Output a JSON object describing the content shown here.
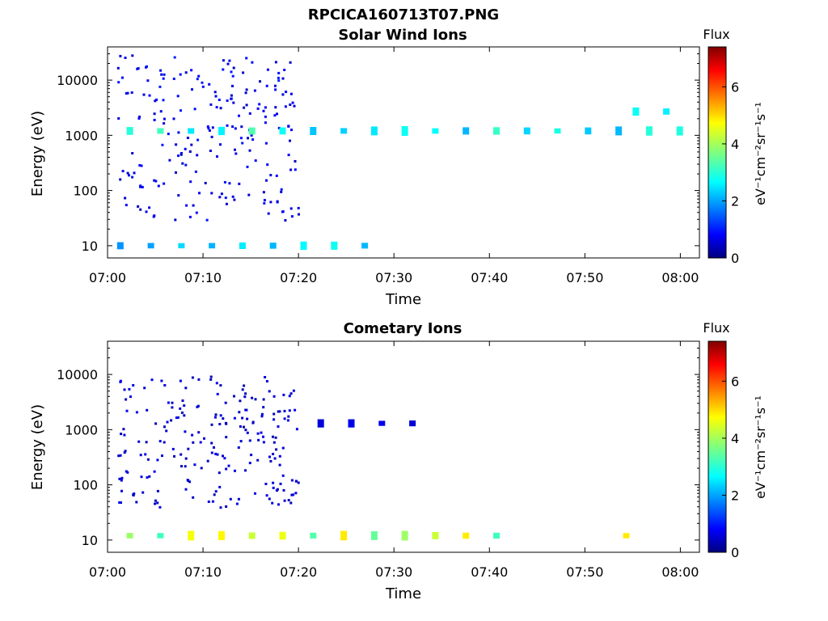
{
  "figure_title": "RPCICA160713T07.PNG",
  "colormap": {
    "name": "jet",
    "stops": [
      "#00007f",
      "#0000ff",
      "#007fff",
      "#00ffff",
      "#7fff7f",
      "#ffff00",
      "#ff7f00",
      "#ff0000",
      "#7f0000"
    ]
  },
  "chart_data": [
    {
      "type": "heatmap",
      "title": "Solar Wind Ions",
      "xlabel": "Time",
      "ylabel": "Energy (eV)",
      "x_range_minutes_after_0700": [
        0,
        62
      ],
      "x_ticks": [
        "07:00",
        "07:10",
        "07:20",
        "07:30",
        "07:40",
        "07:50",
        "08:00"
      ],
      "y_scale": "log",
      "y_range": [
        6,
        40000
      ],
      "y_ticks": [
        "10",
        "100",
        "1000",
        "10000"
      ],
      "colorbar": {
        "title": "Flux",
        "label": "eV⁻¹cm⁻²sr⁻¹s⁻¹",
        "range": [
          0,
          7.4
        ],
        "ticks": [
          "0",
          "2",
          "4",
          "6"
        ]
      },
      "observed_bands": [
        {
          "energy_ev": 1200,
          "time_from": "07:02",
          "time_to": "08:01",
          "flux": 2.8,
          "note": "repeating solar wind beam at ~1 keV"
        },
        {
          "energy_ev": 2700,
          "time_from": "07:55",
          "time_to": "08:01",
          "flux": 2.5
        },
        {
          "energy_ev": 10,
          "time_from": "07:01",
          "time_to": "07:29",
          "flux": 2.5
        }
      ],
      "scatter_background": {
        "energy_ev": [
          30,
          30000
        ],
        "time_from": "07:01",
        "time_to": "07:20",
        "flux": 0.8
      }
    },
    {
      "type": "heatmap",
      "title": "Cometary Ions",
      "xlabel": "Time",
      "ylabel": "Energy (eV)",
      "x_range_minutes_after_0700": [
        0,
        62
      ],
      "x_ticks": [
        "07:00",
        "07:10",
        "07:20",
        "07:30",
        "07:40",
        "07:50",
        "08:00"
      ],
      "y_scale": "log",
      "y_range": [
        6,
        40000
      ],
      "y_ticks": [
        "10",
        "100",
        "1000",
        "10000"
      ],
      "colorbar": {
        "title": "Flux",
        "label": "eV⁻¹cm⁻²sr⁻¹s⁻¹",
        "range": [
          0,
          7.4
        ],
        "ticks": [
          "0",
          "2",
          "4",
          "6"
        ]
      },
      "observed_bands": [
        {
          "energy_ev": 12,
          "time_from": "07:02",
          "time_to": "07:42",
          "flux": 4.0,
          "note": "cometary ions near 10 eV"
        },
        {
          "energy_ev": 12,
          "time_from": "07:54",
          "time_to": "07:55",
          "flux": 5.0
        },
        {
          "energy_ev": 1300,
          "time_from": "07:22",
          "time_to": "07:32",
          "flux": 0.7
        }
      ],
      "scatter_background": {
        "energy_ev": [
          40,
          10000
        ],
        "time_from": "07:01",
        "time_to": "07:20",
        "flux": 0.6
      }
    }
  ]
}
